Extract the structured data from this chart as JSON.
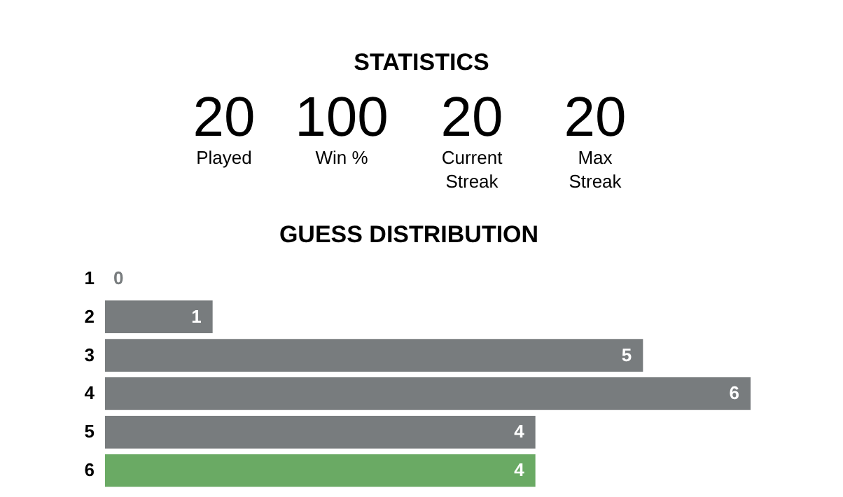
{
  "chart_data": [
    {
      "type": "other",
      "title": "STATISTICS",
      "annotations": [
        "20",
        "Played",
        "100",
        "Win %",
        "20",
        "Current\nStreak",
        "20",
        "Max\nStreak"
      ]
    },
    {
      "type": "bar",
      "orientation": "horizontal",
      "title": "GUESS DISTRIBUTION",
      "categories": [
        "1",
        "2",
        "3",
        "4",
        "5",
        "6"
      ],
      "values": [
        0,
        1,
        5,
        6,
        4,
        4
      ],
      "colors": [
        "#787c7e",
        "#787c7e",
        "#787c7e",
        "#787c7e",
        "#787c7e",
        "#6aaa64"
      ],
      "data_labels": true,
      "grid": false,
      "tick_labels": "y"
    }
  ]
}
